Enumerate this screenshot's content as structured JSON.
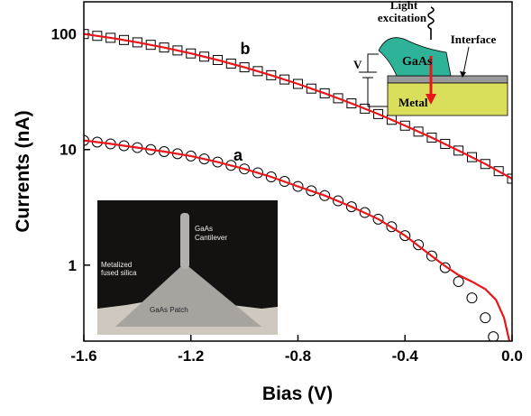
{
  "chart_data": {
    "type": "scatter-line",
    "x_label": "Bias (V)",
    "y_label": "Currents (nA)",
    "log_y": true,
    "xlim": [
      -1.6,
      0.0
    ],
    "ylim": [
      0.22,
      190
    ],
    "xticks": [
      -1.6,
      -1.2,
      -0.8,
      -0.4,
      {
        "value": 0,
        "label": "0.0"
      }
    ],
    "yticks": [
      1,
      10,
      100
    ],
    "series": [
      {
        "label": "b",
        "style": "square",
        "color": "#000000",
        "x": [
          -1.6,
          -1.55,
          -1.5,
          -1.45,
          -1.4,
          -1.35,
          -1.3,
          -1.25,
          -1.2,
          -1.15,
          -1.1,
          -1.05,
          -1.0,
          -0.95,
          -0.9,
          -0.85,
          -0.8,
          -0.75,
          -0.7,
          -0.65,
          -0.6,
          -0.55,
          -0.5,
          -0.45,
          -0.4,
          -0.35,
          -0.3,
          -0.25,
          -0.2,
          -0.15,
          -0.1,
          -0.05,
          0
        ],
        "values": [
          100,
          96.4,
          92.7,
          88.8,
          84.7,
          80.6,
          76.4,
          72.1,
          67.9,
          63.7,
          59.6,
          55.5,
          51.5,
          47.7,
          44.0,
          40.4,
          37.0,
          33.7,
          30.7,
          27.8,
          25.1,
          22.6,
          20.3,
          18.1,
          16.1,
          14.3,
          12.7,
          11.2,
          9.8,
          8.6,
          7.5,
          6.5,
          5.6
        ]
      },
      {
        "label": "a",
        "style": "circle",
        "color": "#000000",
        "x": [
          -1.6,
          -1.55,
          -1.5,
          -1.45,
          -1.4,
          -1.35,
          -1.3,
          -1.25,
          -1.2,
          -1.15,
          -1.1,
          -1.05,
          -1.0,
          -0.95,
          -0.9,
          -0.85,
          -0.8,
          -0.75,
          -0.7,
          -0.65,
          -0.6,
          -0.55,
          -0.5,
          -0.45,
          -0.4,
          -0.35,
          -0.3,
          -0.25,
          -0.2,
          -0.15,
          -0.1,
          -0.07
        ],
        "values": [
          12.0,
          11.6,
          11.2,
          10.8,
          10.4,
          10.0,
          9.6,
          9.2,
          8.8,
          8.3,
          7.8,
          7.3,
          6.8,
          6.3,
          5.8,
          5.3,
          4.8,
          4.4,
          4.0,
          3.6,
          3.2,
          2.85,
          2.5,
          2.15,
          1.8,
          1.5,
          1.2,
          0.95,
          0.72,
          0.52,
          0.35,
          0.24
        ]
      },
      {
        "style": "line",
        "color": "#e8161b",
        "x": [
          -1.6,
          -1.5,
          -1.4,
          -1.3,
          -1.2,
          -1.1,
          -1.0,
          -0.9,
          -0.8,
          -0.7,
          -0.6,
          -0.5,
          -0.4,
          -0.3,
          -0.2,
          -0.1,
          0
        ],
        "values": [
          100,
          92.7,
          84.7,
          76.4,
          67.9,
          59.6,
          51.5,
          44.0,
          37.0,
          30.7,
          25.1,
          20.3,
          16.1,
          12.7,
          9.8,
          7.5,
          5.6
        ]
      },
      {
        "style": "line",
        "color": "#e8161b",
        "x": [
          -1.6,
          -1.5,
          -1.4,
          -1.3,
          -1.2,
          -1.1,
          -1.0,
          -0.9,
          -0.8,
          -0.7,
          -0.6,
          -0.5,
          -0.4,
          -0.3,
          -0.25,
          -0.2,
          -0.15,
          -0.1,
          -0.06,
          -0.03,
          -0.01
        ],
        "values": [
          12.0,
          11.2,
          10.4,
          9.6,
          8.8,
          7.8,
          6.8,
          5.8,
          4.8,
          4.0,
          3.2,
          2.5,
          1.8,
          1.2,
          0.98,
          0.82,
          0.72,
          0.62,
          0.5,
          0.35,
          0.22
        ]
      }
    ]
  },
  "schematic": {
    "light": [
      "Light",
      "excitation"
    ],
    "interface": "Interface",
    "gaas": "GaAs",
    "voltage": "V",
    "metal": "Metal"
  },
  "photo": {
    "cantilever": [
      "GaAs",
      "Cantilever"
    ],
    "silica": [
      "Metalized",
      "fused silica"
    ],
    "patch": "GaAs Patch"
  }
}
